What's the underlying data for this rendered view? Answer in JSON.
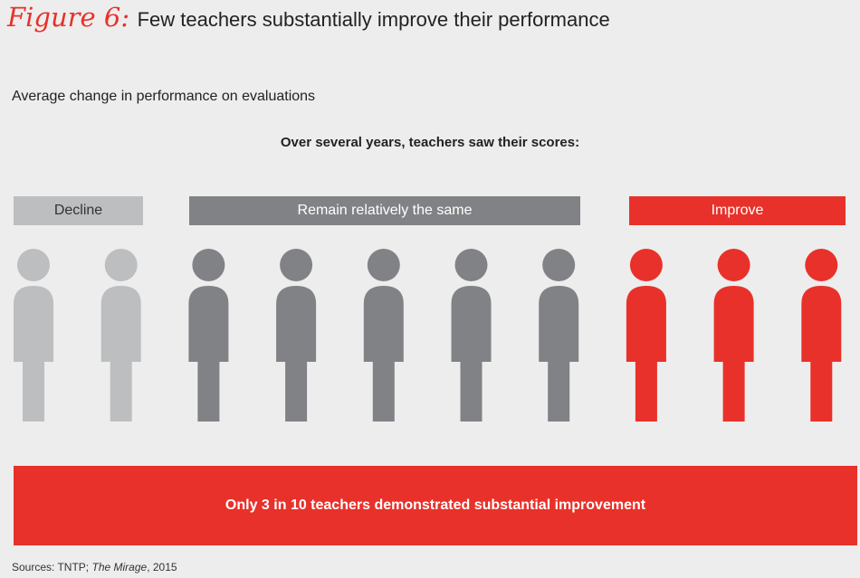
{
  "figure_label": "Figure 6:",
  "title": "Few teachers substantially improve their performance",
  "subtitle": "Average change in performance on evaluations",
  "header": "Over several years, teachers saw their scores:",
  "colors": {
    "decline": "#bdbec0",
    "same": "#818285",
    "improve": "#e8312a",
    "background": "#ededed"
  },
  "chart_data": {
    "type": "pictogram",
    "categories": [
      "Decline",
      "Remain relatively the same",
      "Improve"
    ],
    "values": [
      2,
      5,
      3
    ],
    "total": 10,
    "icon": "person-icon"
  },
  "banner": "Only 3 in 10 teachers demonstrated substantial improvement",
  "sources": {
    "prefix": "Sources: TNTP; ",
    "italic": "The Mirage",
    "suffix": ", 2015"
  }
}
